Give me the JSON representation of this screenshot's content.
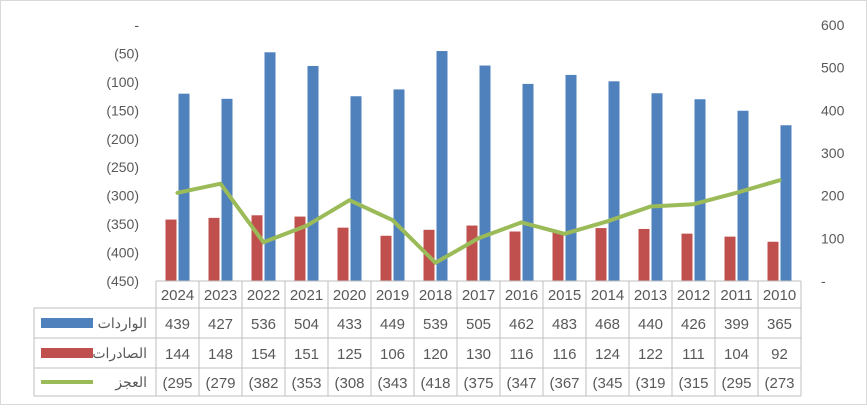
{
  "chart_data": {
    "type": "bar",
    "categories": [
      "2024",
      "2023",
      "2022",
      "2021",
      "2020",
      "2019",
      "2018",
      "2017",
      "2016",
      "2015",
      "2014",
      "2013",
      "2012",
      "2011",
      "2010"
    ],
    "series": [
      {
        "name": "الواردات",
        "kind": "bar",
        "axis": "right",
        "color": "#4f81bd",
        "values": [
          439,
          427,
          536,
          504,
          433,
          449,
          539,
          505,
          462,
          483,
          468,
          440,
          426,
          399,
          365
        ],
        "labels": [
          "439",
          "427",
          "536",
          "504",
          "433",
          "449",
          "539",
          "505",
          "462",
          "483",
          "468",
          "440",
          "426",
          "399",
          "365"
        ]
      },
      {
        "name": "الصادرات",
        "kind": "bar",
        "axis": "right",
        "color": "#c0504d",
        "values": [
          144,
          148,
          154,
          151,
          125,
          106,
          120,
          130,
          116,
          116,
          124,
          122,
          111,
          104,
          92
        ],
        "labels": [
          "144",
          "148",
          "154",
          "151",
          "125",
          "106",
          "120",
          "130",
          "116",
          "116",
          "124",
          "122",
          "111",
          "104",
          "92"
        ]
      },
      {
        "name": "العجز",
        "kind": "line",
        "axis": "left",
        "color": "#9bbb59",
        "values": [
          -295,
          -279,
          -382,
          -353,
          -308,
          -343,
          -418,
          -375,
          -347,
          -367,
          -345,
          -319,
          -315,
          -295,
          -273
        ],
        "labels": [
          "(295",
          "(279",
          "(382",
          "(353",
          "(308",
          "(343",
          "(418",
          "(375",
          "(347",
          "(367",
          "(345",
          "(319",
          "(315",
          "(295",
          "(273"
        ]
      }
    ],
    "left_axis": {
      "ylim": [
        -450,
        0
      ],
      "ticks": [
        "-",
        "(50)",
        "(100)",
        "(150)",
        "(200)",
        "(250)",
        "(300)",
        "(350)",
        "(400)",
        "(450)"
      ]
    },
    "right_axis": {
      "ylim": [
        0,
        600
      ],
      "ticks": [
        "600",
        "500",
        "400",
        "300",
        "200",
        "100",
        "-"
      ]
    },
    "grid": false,
    "legend": "data-table"
  }
}
